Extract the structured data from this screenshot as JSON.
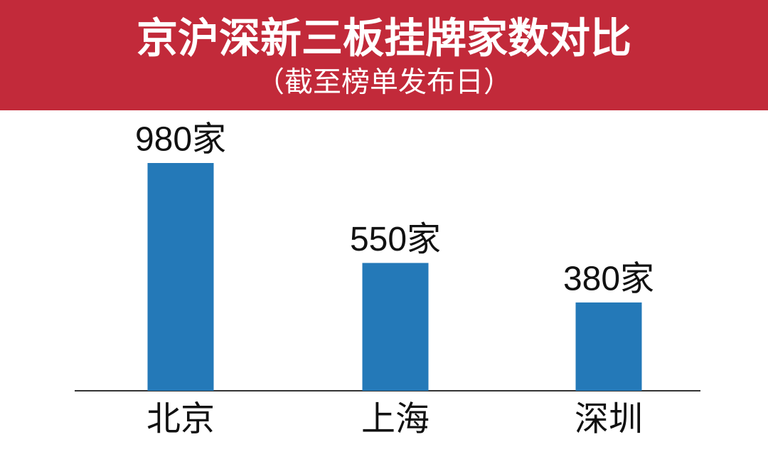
{
  "chart_data": {
    "type": "bar",
    "title": "京沪深新三板挂牌家数对比",
    "subtitle": "（截至榜单发布日）",
    "categories": [
      "北京",
      "上海",
      "深圳"
    ],
    "values": [
      980,
      550,
      380
    ],
    "value_labels": [
      "980家",
      "550家",
      "380家"
    ],
    "color": "#2479b8"
  }
}
